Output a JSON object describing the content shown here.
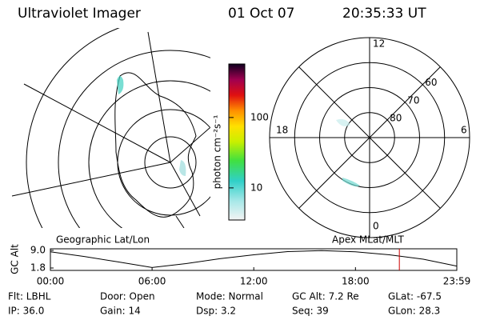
{
  "header": {
    "title": "Ultraviolet Imager",
    "date": "01 Oct 07",
    "time": "20:35:33 UT"
  },
  "colorbar": {
    "label": "photon cm⁻²s⁻¹",
    "lim": [
      3.5,
      575
    ],
    "ticks": [
      10,
      100
    ],
    "log": true
  },
  "polar": {
    "mlt_labels": {
      "top": "12",
      "left": "18",
      "right": "6",
      "bottom": "0"
    },
    "lat_rings": [
      60,
      70,
      80
    ],
    "outer_lat": 50
  },
  "chart_data": {
    "type": "line",
    "ylabel": "GC Alt",
    "left_label": "Geographic Lat/Lon",
    "right_label": "Apex MLat/MLT",
    "x": [
      0,
      2,
      4,
      6,
      8,
      10,
      12,
      14,
      16,
      18,
      20,
      22,
      23.98
    ],
    "series": [
      {
        "name": "GC Alt",
        "color": "#000000",
        "values": [
          8.4,
          6.5,
          4.3,
          2.0,
          3.6,
          5.6,
          7.2,
          8.5,
          8.9,
          8.4,
          7.2,
          5.4,
          2.6
        ]
      }
    ],
    "current_time": 20.59,
    "current_color": "#cc0000",
    "xlim": [
      0,
      23.98
    ],
    "xticks": [
      {
        "value": 0,
        "label": "00:00"
      },
      {
        "value": 6,
        "label": "06:00"
      },
      {
        "value": 12,
        "label": "12:00"
      },
      {
        "value": 18,
        "label": "18:00"
      },
      {
        "value": 23.98,
        "label": "23:59"
      }
    ],
    "ylim": [
      1.8,
      9.0
    ],
    "yticks": [
      {
        "value": 1.8,
        "label": "1.8"
      },
      {
        "value": 9.0,
        "label": "9.0"
      }
    ]
  },
  "footer": [
    [
      "Flt: LBHL",
      "IP: 36.0"
    ],
    [
      "Door: Open",
      "Gain: 14"
    ],
    [
      "Mode: Normal",
      "Dsp:    3.2"
    ],
    [
      "GC Alt: 7.2 Re",
      "Seq: 39"
    ],
    [
      "GLat: -67.5",
      "GLon: 28.3"
    ]
  ]
}
